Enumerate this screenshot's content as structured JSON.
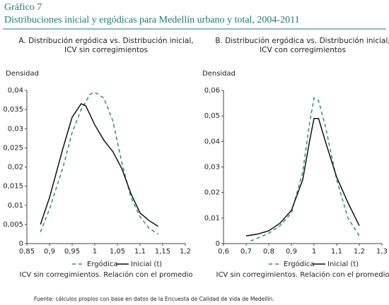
{
  "header": {
    "label": "Gráfico 7",
    "title": "Distribuciones inicial y ergódicas para Medellín urbano y total, 2004-2011"
  },
  "chart_data": [
    {
      "type": "line",
      "title": [
        "A. Distribución ergódica vs. Distribución inicial,",
        "ICV sin corregimientos"
      ],
      "ylabel": "Densidad",
      "xlabel": "ICV sin corregimientos. Relación con el promedio",
      "xlim": [
        0.85,
        1.2
      ],
      "xticks": [
        {
          "value": 0.85,
          "label": "0,85"
        },
        {
          "value": 0.9,
          "label": "0,9"
        },
        {
          "value": 0.95,
          "label": "0,95"
        },
        1,
        {
          "value": 1.05,
          "label": "1,05"
        },
        {
          "value": 1.1,
          "label": "1,1"
        },
        {
          "value": 1.15,
          "label": "1,15"
        },
        {
          "value": 1.2,
          "label": "1,2"
        }
      ],
      "ylim": [
        0,
        0.04
      ],
      "yticks": [
        0,
        {
          "value": 0.005,
          "label": "0,005"
        },
        {
          "value": 0.01,
          "label": "0,01"
        },
        {
          "value": 0.015,
          "label": "0,015"
        },
        {
          "value": 0.02,
          "label": "0,02"
        },
        {
          "value": 0.025,
          "label": "0,025"
        },
        {
          "value": 0.03,
          "label": "0,03"
        },
        {
          "value": 0.035,
          "label": "0,035"
        },
        {
          "value": 0.04,
          "label": "0,04"
        }
      ],
      "series": [
        {
          "name": "Ergódica",
          "color": "#2e8b78",
          "dashed": true,
          "x": [
            0.88,
            0.9,
            0.93,
            0.95,
            0.97,
            0.99,
            1.0,
            1.02,
            1.04,
            1.06,
            1.08,
            1.1,
            1.12,
            1.14
          ],
          "values": [
            0.003,
            0.009,
            0.02,
            0.029,
            0.035,
            0.039,
            0.0395,
            0.038,
            0.032,
            0.021,
            0.012,
            0.007,
            0.004,
            0.0025
          ]
        },
        {
          "name": "Inicial (t)",
          "color": "#111111",
          "dashed": false,
          "x": [
            0.88,
            0.9,
            0.93,
            0.95,
            0.97,
            0.98,
            1.0,
            1.02,
            1.04,
            1.06,
            1.08,
            1.1,
            1.12,
            1.14
          ],
          "values": [
            0.005,
            0.012,
            0.025,
            0.033,
            0.0365,
            0.036,
            0.031,
            0.027,
            0.024,
            0.0195,
            0.013,
            0.008,
            0.006,
            0.0045
          ]
        }
      ]
    },
    {
      "type": "line",
      "title": [
        "B. Distribución ergódica vs. Distribución inicial,",
        "ICV con corregimientos"
      ],
      "ylabel": "Densidad",
      "xlabel": "ICV sin corregimientos. Relación con el promedio",
      "xlim": [
        0.6,
        1.3
      ],
      "xticks": [
        {
          "value": 0.6,
          "label": "0,6"
        },
        {
          "value": 0.7,
          "label": "0,7"
        },
        {
          "value": 0.8,
          "label": "0,8"
        },
        {
          "value": 0.9,
          "label": "0,9"
        },
        1,
        {
          "value": 1.1,
          "label": "1,1"
        },
        {
          "value": 1.2,
          "label": "1,2"
        },
        {
          "value": 1.3,
          "label": "1,3"
        }
      ],
      "ylim": [
        0,
        0.06
      ],
      "yticks": [
        0,
        {
          "value": 0.01,
          "label": "0,01"
        },
        {
          "value": 0.02,
          "label": "0,02"
        },
        {
          "value": 0.03,
          "label": "0,03"
        },
        {
          "value": 0.04,
          "label": "0,04"
        },
        {
          "value": 0.05,
          "label": "0,05"
        },
        {
          "value": 0.06,
          "label": "0,06"
        }
      ],
      "series": [
        {
          "name": "Ergódica",
          "color": "#2e8b78",
          "dashed": true,
          "x": [
            0.72,
            0.8,
            0.85,
            0.9,
            0.95,
            0.98,
            1.0,
            1.02,
            1.05,
            1.1,
            1.15,
            1.2
          ],
          "values": [
            0.001,
            0.004,
            0.007,
            0.012,
            0.028,
            0.047,
            0.057,
            0.056,
            0.046,
            0.025,
            0.01,
            0.003
          ]
        },
        {
          "name": "Inicial (t)",
          "color": "#111111",
          "dashed": false,
          "x": [
            0.7,
            0.75,
            0.8,
            0.85,
            0.9,
            0.95,
            0.98,
            1.0,
            1.02,
            1.05,
            1.1,
            1.15,
            1.2
          ],
          "values": [
            0.003,
            0.0037,
            0.005,
            0.008,
            0.013,
            0.025,
            0.04,
            0.049,
            0.049,
            0.04,
            0.026,
            0.016,
            0.007
          ]
        }
      ]
    }
  ],
  "source": "Fuente: cálculos propios con base en datos de la Encuesta de Calidad de vida de Medellín."
}
